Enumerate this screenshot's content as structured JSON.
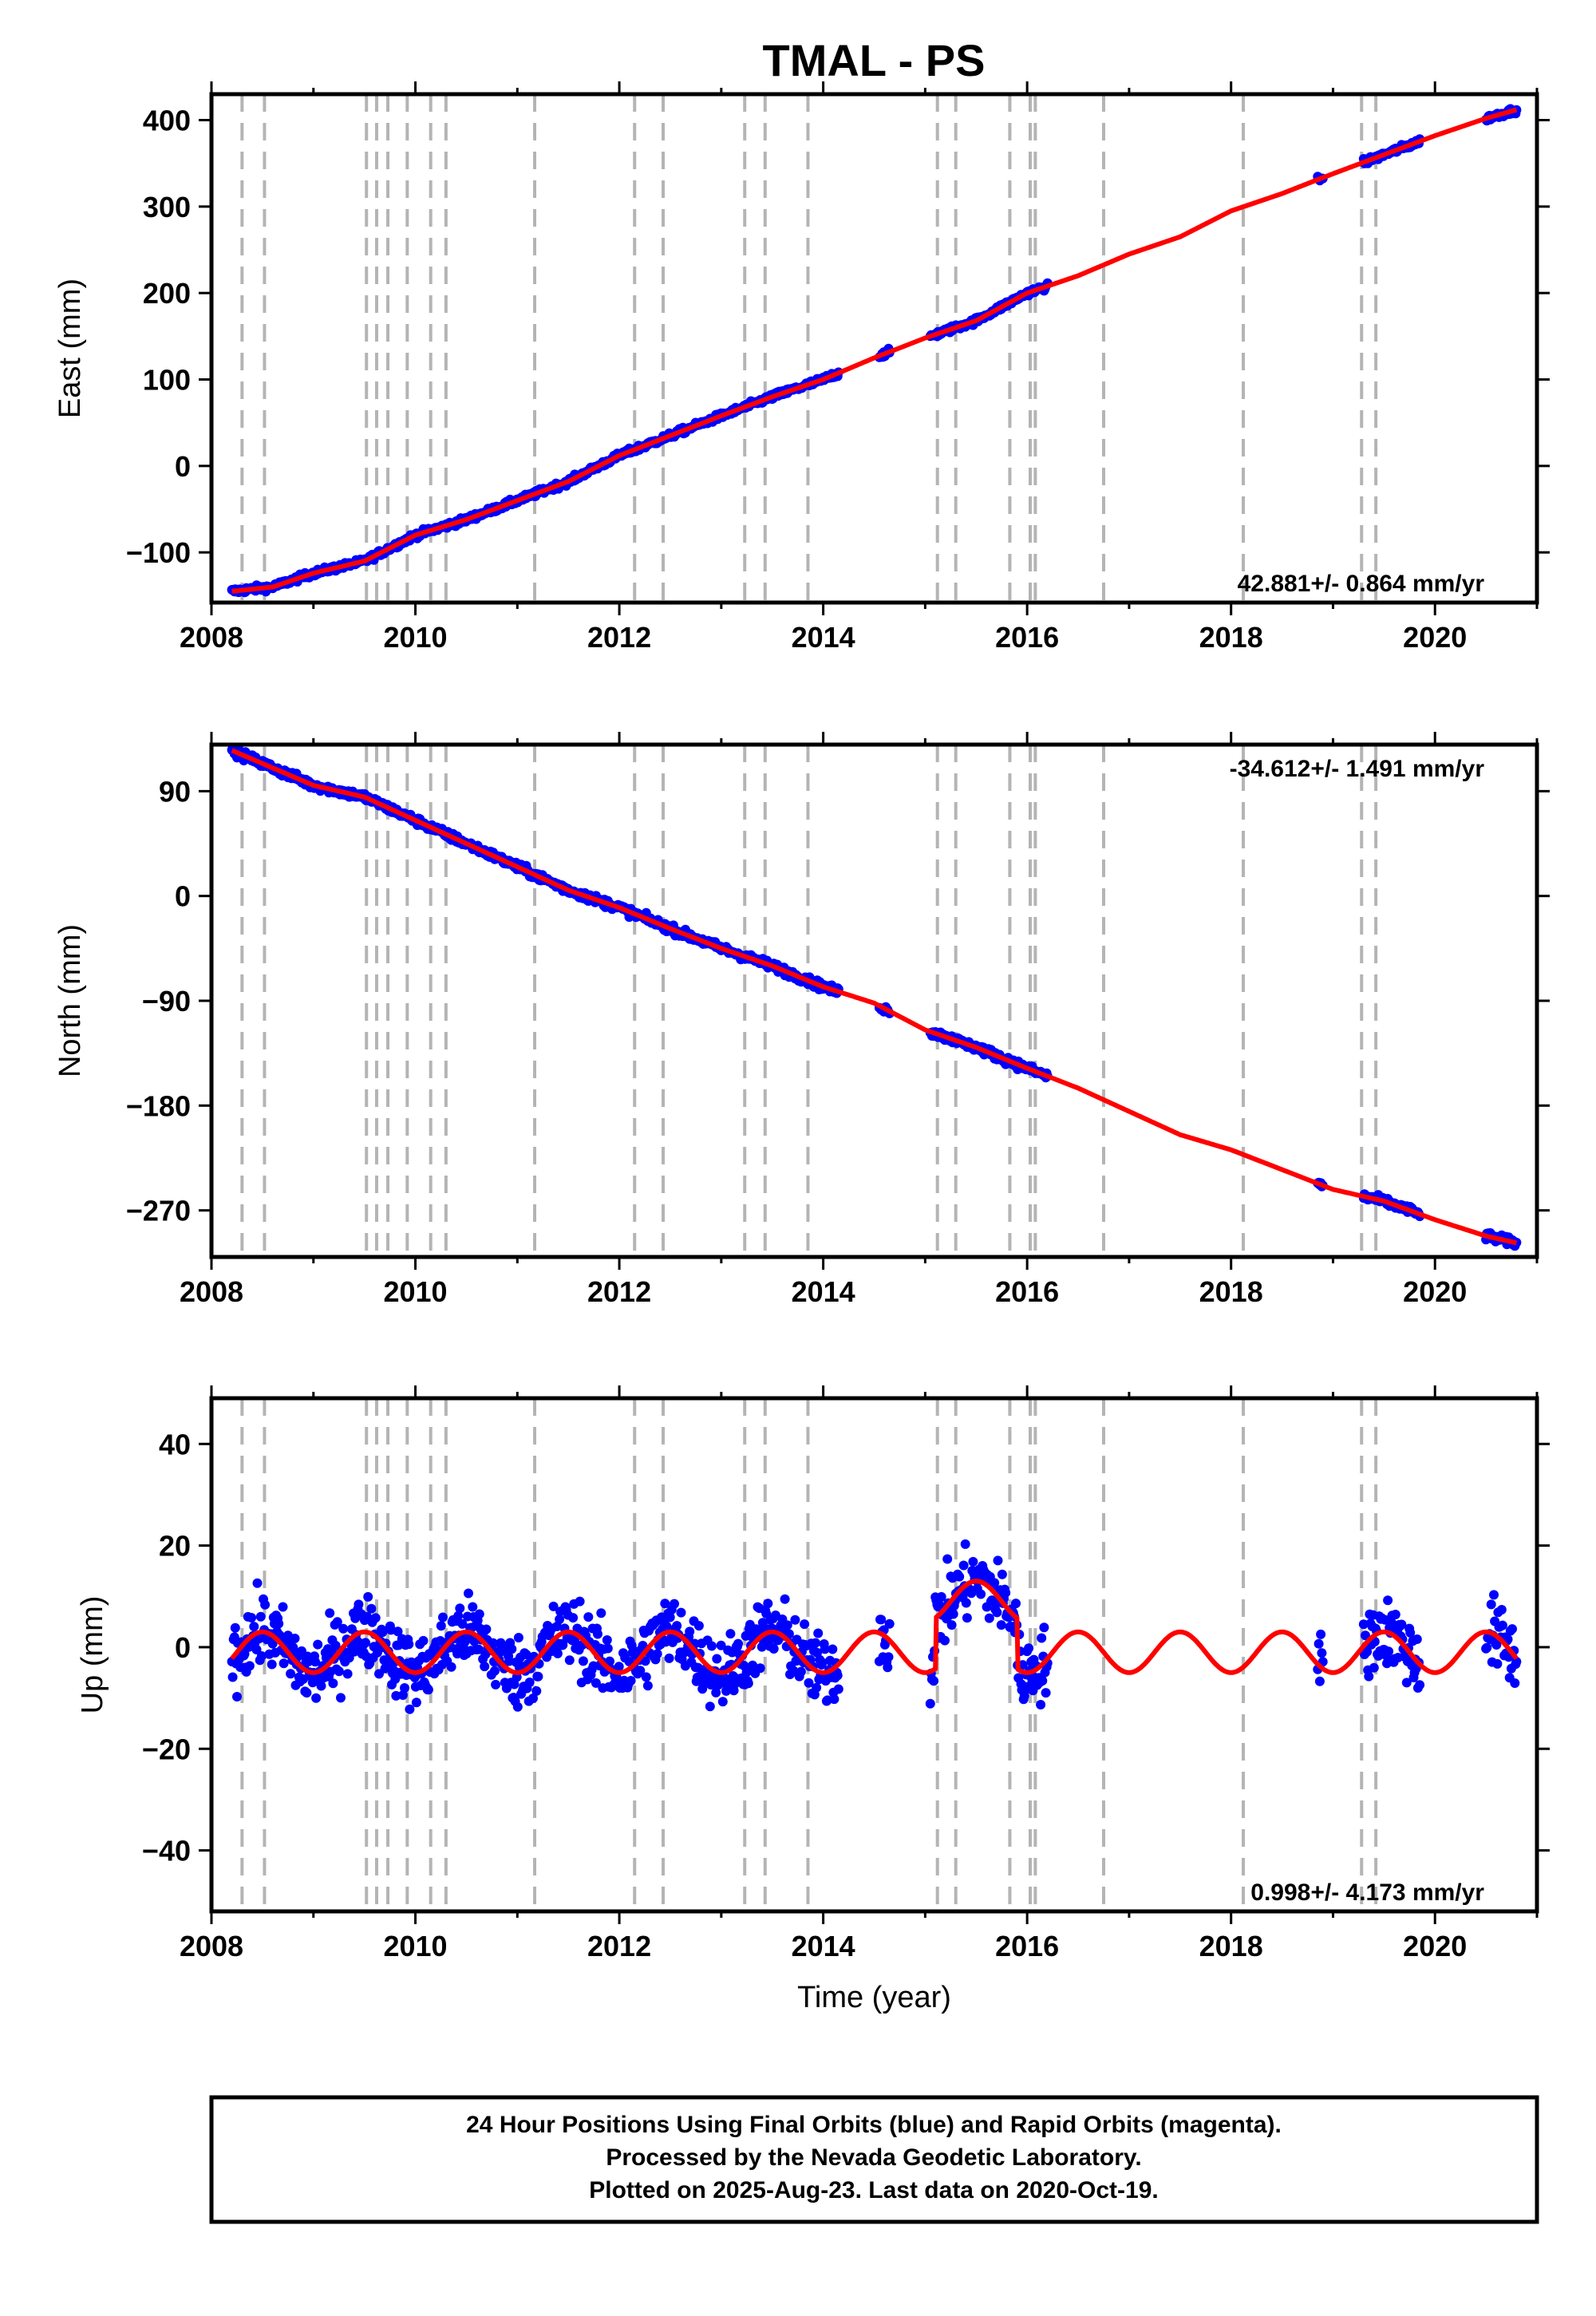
{
  "title": "TMAL - PS",
  "footer": {
    "lines": [
      "24 Hour Positions Using Final Orbits (blue) and Rapid Orbits (magenta).",
      "Processed by the Nevada Geodetic Laboratory.",
      "Plotted on 2025-Aug-23. Last data on 2020-Oct-19."
    ]
  },
  "colors": {
    "data": "#0000ff",
    "model": "#ff0000",
    "breaks": "#b4b4b4",
    "axis": "#000000"
  },
  "chart_data": [
    {
      "type": "scatter",
      "ylabel": "East (mm)",
      "xlabel": "",
      "xlim": [
        2008.0,
        2021.0
      ],
      "ylim": [
        -158,
        430
      ],
      "xticks": [
        2008,
        2010,
        2012,
        2014,
        2016,
        2018,
        2020
      ],
      "yticks": [
        -100,
        0,
        100,
        200,
        300,
        400
      ],
      "rate": "42.881+/- 0.864 mm/yr",
      "rate_position": "bottom-right",
      "model_knots": [
        [
          2008.2,
          -145
        ],
        [
          2008.6,
          -140
        ],
        [
          2009.0,
          -124
        ],
        [
          2009.5,
          -110
        ],
        [
          2010.0,
          -80
        ],
        [
          2010.5,
          -62
        ],
        [
          2011.0,
          -40
        ],
        [
          2011.5,
          -18
        ],
        [
          2012.0,
          12
        ],
        [
          2012.5,
          35
        ],
        [
          2013.0,
          58
        ],
        [
          2013.5,
          80
        ],
        [
          2014.0,
          100
        ],
        [
          2014.5,
          125
        ],
        [
          2015.0,
          148
        ],
        [
          2015.5,
          168
        ],
        [
          2016.0,
          200
        ],
        [
          2016.5,
          220
        ],
        [
          2017.0,
          245
        ],
        [
          2017.5,
          265
        ],
        [
          2018.0,
          295
        ],
        [
          2018.5,
          315
        ],
        [
          2019.0,
          338
        ],
        [
          2019.5,
          360
        ],
        [
          2020.0,
          382
        ],
        [
          2020.5,
          402
        ],
        [
          2020.8,
          412
        ]
      ]
    },
    {
      "type": "scatter",
      "ylabel": "North (mm)",
      "xlabel": "",
      "xlim": [
        2008.0,
        2021.0
      ],
      "ylim": [
        -310,
        130
      ],
      "xticks": [
        2008,
        2010,
        2012,
        2014,
        2016,
        2018,
        2020
      ],
      "yticks": [
        -270,
        -180,
        -90,
        0,
        90
      ],
      "rate": "-34.612+/- 1.491 mm/yr",
      "rate_position": "top-right",
      "model_knots": [
        [
          2008.2,
          125
        ],
        [
          2008.6,
          110
        ],
        [
          2009.0,
          95
        ],
        [
          2009.5,
          85
        ],
        [
          2010.0,
          65
        ],
        [
          2010.5,
          45
        ],
        [
          2011.0,
          25
        ],
        [
          2011.5,
          5
        ],
        [
          2012.0,
          -10
        ],
        [
          2012.5,
          -28
        ],
        [
          2013.0,
          -45
        ],
        [
          2013.5,
          -60
        ],
        [
          2014.0,
          -78
        ],
        [
          2014.5,
          -92
        ],
        [
          2015.0,
          -115
        ],
        [
          2015.5,
          -130
        ],
        [
          2016.0,
          -148
        ],
        [
          2016.5,
          -165
        ],
        [
          2017.0,
          -185
        ],
        [
          2017.5,
          -205
        ],
        [
          2018.0,
          -218
        ],
        [
          2018.5,
          -235
        ],
        [
          2019.0,
          -252
        ],
        [
          2019.5,
          -262
        ],
        [
          2020.0,
          -278
        ],
        [
          2020.5,
          -292
        ],
        [
          2020.8,
          -298
        ]
      ]
    },
    {
      "type": "scatter",
      "ylabel": "Up (mm)",
      "xlabel": "Time (year)",
      "xlim": [
        2008.0,
        2021.0
      ],
      "ylim": [
        -52,
        49
      ],
      "xticks": [
        2008,
        2010,
        2012,
        2014,
        2016,
        2018,
        2020
      ],
      "yticks": [
        -40,
        -20,
        0,
        20,
        40
      ],
      "rate": "0.998+/- 4.173 mm/yr",
      "rate_position": "bottom-right",
      "seasonal": {
        "amplitude_mm": 4,
        "offset_mm": -1,
        "phase_year": 2008.25
      },
      "offsets": [
        [
          2015.1,
          2015.9,
          10
        ]
      ]
    }
  ],
  "breaks": [
    2008.3,
    2008.52,
    2009.52,
    2009.62,
    2009.73,
    2009.92,
    2010.15,
    2010.3,
    2011.17,
    2012.15,
    2012.43,
    2013.23,
    2013.43,
    2013.85,
    2015.12,
    2015.3,
    2015.83,
    2016.03,
    2016.08,
    2016.75,
    2018.12,
    2019.28,
    2019.42
  ],
  "data_spans": [
    [
      2008.2,
      2014.15
    ],
    [
      2014.55,
      2014.65
    ],
    [
      2015.05,
      2016.2
    ],
    [
      2018.85,
      2018.9
    ],
    [
      2019.3,
      2019.85
    ],
    [
      2020.5,
      2020.8
    ]
  ]
}
